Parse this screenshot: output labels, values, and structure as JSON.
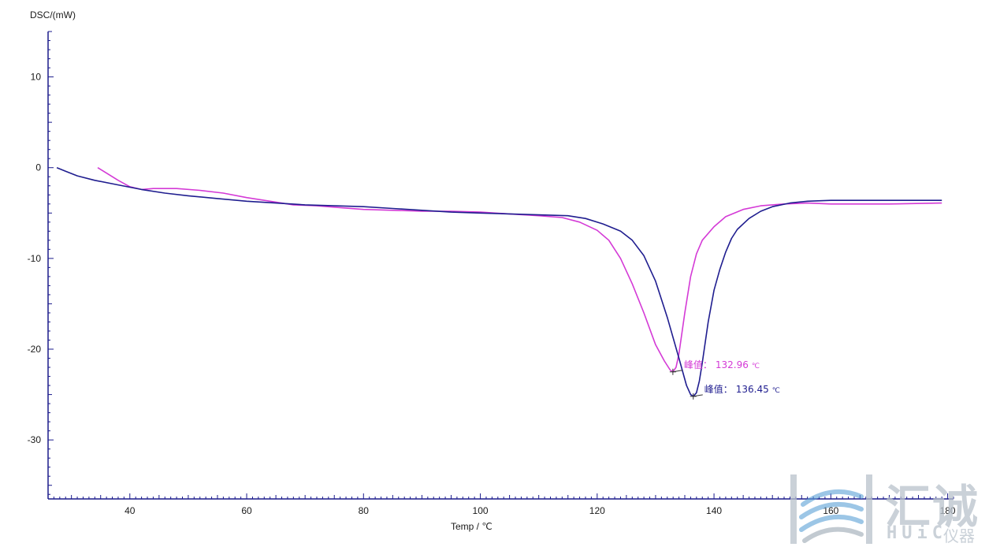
{
  "chart_data": {
    "type": "line",
    "title": "",
    "xlabel": "Temp / ℃",
    "ylabel": "DSC/(mW)",
    "xlim": [
      26,
      181
    ],
    "ylim": [
      -36.5,
      15
    ],
    "x_ticks": [
      40,
      60,
      80,
      100,
      120,
      140,
      160,
      180
    ],
    "y_ticks": [
      10,
      0,
      -10,
      -20,
      -30
    ],
    "grid": false,
    "series": [
      {
        "color": "#d43ad6",
        "points": [
          [
            34.5,
            0
          ],
          [
            36,
            -0.6
          ],
          [
            38,
            -1.4
          ],
          [
            40,
            -2.1
          ],
          [
            42,
            -2.4
          ],
          [
            44,
            -2.3
          ],
          [
            48,
            -2.3
          ],
          [
            52,
            -2.5
          ],
          [
            56,
            -2.8
          ],
          [
            60,
            -3.3
          ],
          [
            64,
            -3.7
          ],
          [
            68,
            -4.1
          ],
          [
            72,
            -4.2
          ],
          [
            76,
            -4.4
          ],
          [
            80,
            -4.6
          ],
          [
            85,
            -4.7
          ],
          [
            90,
            -4.8
          ],
          [
            95,
            -4.8
          ],
          [
            100,
            -4.9
          ],
          [
            105,
            -5.1
          ],
          [
            110,
            -5.3
          ],
          [
            114,
            -5.5
          ],
          [
            117,
            -6.0
          ],
          [
            120,
            -6.9
          ],
          [
            122,
            -8.0
          ],
          [
            124,
            -10.0
          ],
          [
            126,
            -12.8
          ],
          [
            128,
            -16.0
          ],
          [
            130,
            -19.5
          ],
          [
            131.5,
            -21.3
          ],
          [
            132.5,
            -22.3
          ],
          [
            132.96,
            -22.5
          ],
          [
            133.5,
            -22.0
          ],
          [
            134,
            -20.5
          ],
          [
            135,
            -16.0
          ],
          [
            136,
            -12.0
          ],
          [
            137,
            -9.5
          ],
          [
            138,
            -8.0
          ],
          [
            140,
            -6.5
          ],
          [
            142,
            -5.4
          ],
          [
            145,
            -4.6
          ],
          [
            148,
            -4.2
          ],
          [
            152,
            -4.0
          ],
          [
            156,
            -3.9
          ],
          [
            160,
            -4.0
          ],
          [
            170,
            -4.0
          ],
          [
            179,
            -3.9
          ]
        ]
      },
      {
        "color": "#1f1d8f",
        "points": [
          [
            27.5,
            0
          ],
          [
            29,
            -0.4
          ],
          [
            31,
            -0.9
          ],
          [
            34,
            -1.4
          ],
          [
            38,
            -1.9
          ],
          [
            42,
            -2.4
          ],
          [
            46,
            -2.8
          ],
          [
            50,
            -3.1
          ],
          [
            55,
            -3.4
          ],
          [
            60,
            -3.7
          ],
          [
            65,
            -3.9
          ],
          [
            70,
            -4.1
          ],
          [
            75,
            -4.2
          ],
          [
            80,
            -4.3
          ],
          [
            85,
            -4.5
          ],
          [
            90,
            -4.7
          ],
          [
            95,
            -4.9
          ],
          [
            100,
            -5.0
          ],
          [
            105,
            -5.1
          ],
          [
            110,
            -5.2
          ],
          [
            115,
            -5.3
          ],
          [
            118,
            -5.6
          ],
          [
            121,
            -6.2
          ],
          [
            124,
            -7.0
          ],
          [
            126,
            -8.0
          ],
          [
            128,
            -9.7
          ],
          [
            130,
            -12.5
          ],
          [
            132,
            -16.5
          ],
          [
            134,
            -21.0
          ],
          [
            135.3,
            -24.0
          ],
          [
            136,
            -25.0
          ],
          [
            136.45,
            -25.2
          ],
          [
            137,
            -24.8
          ],
          [
            137.5,
            -23.5
          ],
          [
            138,
            -21.5
          ],
          [
            139,
            -17.0
          ],
          [
            140,
            -13.5
          ],
          [
            141,
            -11.2
          ],
          [
            142,
            -9.3
          ],
          [
            143,
            -7.8
          ],
          [
            144,
            -6.8
          ],
          [
            146,
            -5.6
          ],
          [
            148,
            -4.8
          ],
          [
            150,
            -4.3
          ],
          [
            153,
            -3.9
          ],
          [
            156,
            -3.7
          ],
          [
            160,
            -3.6
          ],
          [
            170,
            -3.6
          ],
          [
            179,
            -3.6
          ]
        ]
      }
    ],
    "annotations": [
      {
        "label": "峰值：",
        "value": "132.96",
        "unit": "℃",
        "x": 132.96,
        "y": -22.5,
        "color": "#d43ad6"
      },
      {
        "label": "峰值：",
        "value": "136.45",
        "unit": "℃",
        "x": 136.45,
        "y": -25.2,
        "color": "#1f1d8f"
      }
    ]
  },
  "watermark": {
    "chinese": "汇诚",
    "brand": "HUiC",
    "sub": "仪器"
  }
}
